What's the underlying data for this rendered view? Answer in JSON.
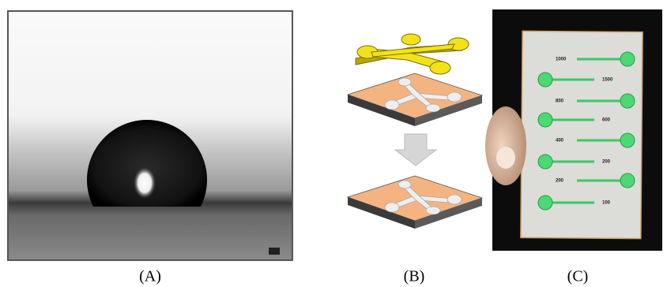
{
  "captions": [
    "(A)",
    "(B)",
    "(C)"
  ],
  "panel_c": {
    "labels": [
      "1000",
      "1500",
      "800",
      "600",
      "400",
      "200",
      "200",
      "100"
    ]
  }
}
